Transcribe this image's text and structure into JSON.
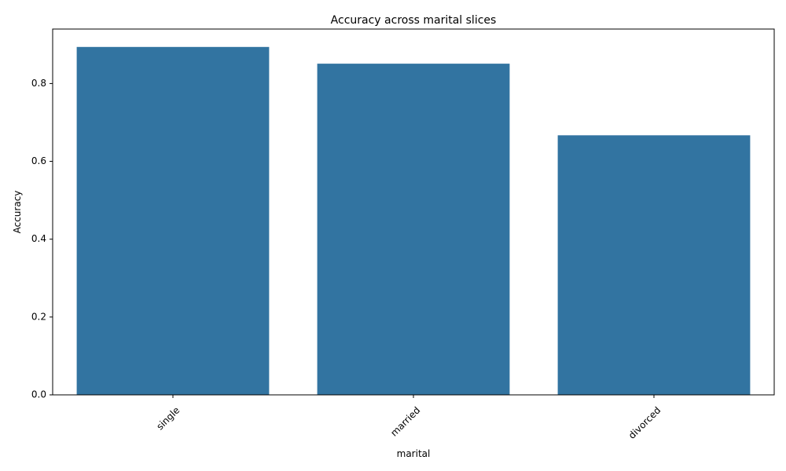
{
  "chart_data": {
    "type": "bar",
    "title": "Accuracy across marital slices",
    "xlabel": "marital",
    "ylabel": "Accuracy",
    "categories": [
      "single",
      "married",
      "divorced"
    ],
    "values": [
      0.894,
      0.851,
      0.667
    ],
    "ylim": [
      0,
      0.94
    ],
    "yticks": [
      "0.0",
      "0.2",
      "0.4",
      "0.6",
      "0.8"
    ],
    "ytick_values": [
      0.0,
      0.2,
      0.4,
      0.6,
      0.8
    ],
    "xtick_rotation_deg": 45,
    "grid": false,
    "bar_color": "#3274a1",
    "axis_color": "#000000"
  }
}
